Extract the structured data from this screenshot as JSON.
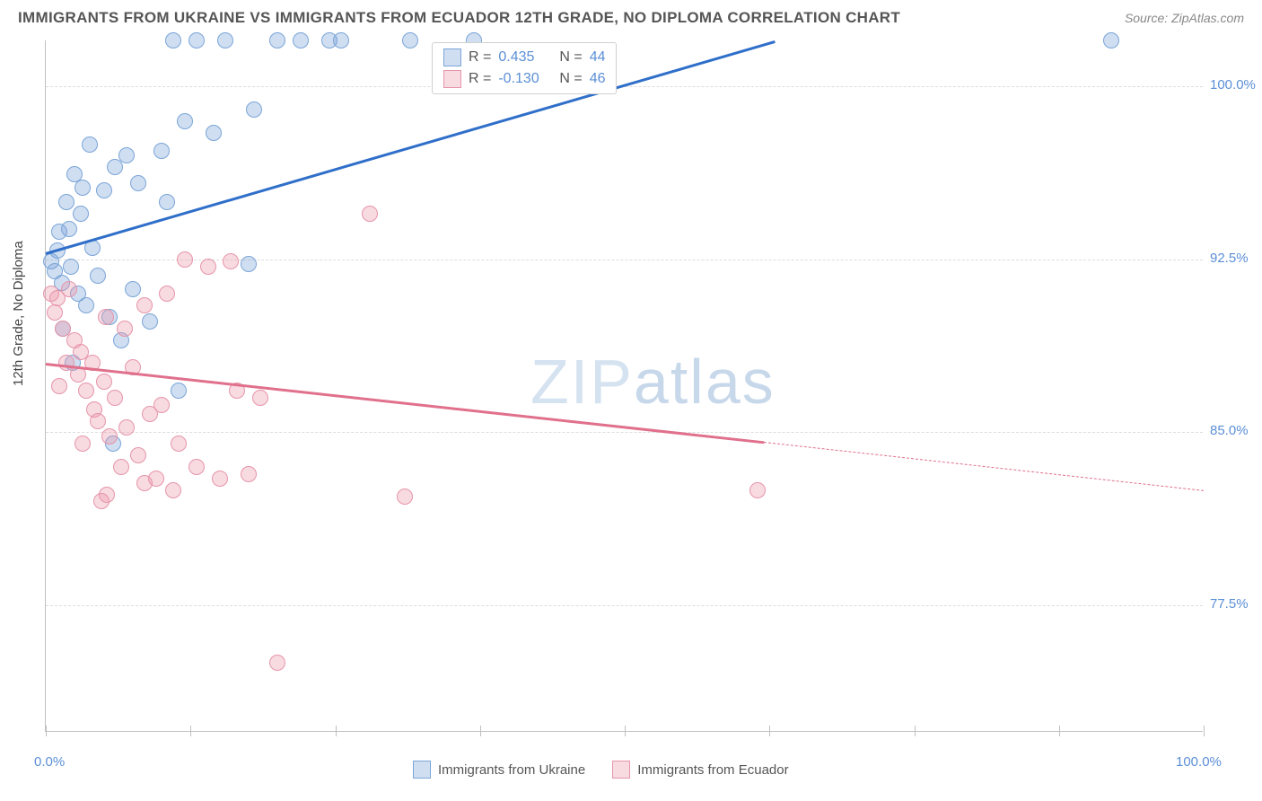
{
  "title": "IMMIGRANTS FROM UKRAINE VS IMMIGRANTS FROM ECUADOR 12TH GRADE, NO DIPLOMA CORRELATION CHART",
  "source": "Source: ZipAtlas.com",
  "ylabel": "12th Grade, No Diploma",
  "watermark": "ZIPatlas",
  "xlim": [
    0,
    100
  ],
  "ylim": [
    72,
    102
  ],
  "xtick_labels": {
    "min": "0.0%",
    "max": "100.0%"
  },
  "xtick_positions": [
    0,
    12.5,
    25,
    37.5,
    50,
    62.5,
    75,
    87.5,
    100
  ],
  "ytick_labels": [
    "77.5%",
    "85.0%",
    "92.5%",
    "100.0%"
  ],
  "ytick_values": [
    77.5,
    85.0,
    92.5,
    100.0
  ],
  "grid_color": "#dddddd",
  "background_color": "#ffffff",
  "series": [
    {
      "name": "Immigrants from Ukraine",
      "color_fill": "rgba(120,160,215,0.35)",
      "color_stroke": "#7aa5d8",
      "r_value": "0.435",
      "n_value": "44",
      "trend_color": "#2f6fc9",
      "trend_start": {
        "x": 0,
        "y": 92.8
      },
      "trend_end": {
        "x": 63,
        "y": 102.0
      },
      "marker_radius": 9,
      "points": [
        [
          0.5,
          92.4
        ],
        [
          0.8,
          92.0
        ],
        [
          1.0,
          92.9
        ],
        [
          1.2,
          93.7
        ],
        [
          1.4,
          91.5
        ],
        [
          1.8,
          95.0
        ],
        [
          2.0,
          93.8
        ],
        [
          2.2,
          92.2
        ],
        [
          2.5,
          96.2
        ],
        [
          2.8,
          91.0
        ],
        [
          3.0,
          94.5
        ],
        [
          3.2,
          95.6
        ],
        [
          3.5,
          90.5
        ],
        [
          3.8,
          97.5
        ],
        [
          4.0,
          93.0
        ],
        [
          4.5,
          91.8
        ],
        [
          5.0,
          95.5
        ],
        [
          5.5,
          90.0
        ],
        [
          6.0,
          96.5
        ],
        [
          6.5,
          89.0
        ],
        [
          1.5,
          89.5
        ],
        [
          2.3,
          88.0
        ],
        [
          7.0,
          97.0
        ],
        [
          7.5,
          91.2
        ],
        [
          8.0,
          95.8
        ],
        [
          9.0,
          89.8
        ],
        [
          10.0,
          97.2
        ],
        [
          10.5,
          95.0
        ],
        [
          11.0,
          102.0
        ],
        [
          12.0,
          98.5
        ],
        [
          13.0,
          102.0
        ],
        [
          14.5,
          98.0
        ],
        [
          15.5,
          102.0
        ],
        [
          17.5,
          92.3
        ],
        [
          18.0,
          99.0
        ],
        [
          20.0,
          102.0
        ],
        [
          22.0,
          102.0
        ],
        [
          24.5,
          102.0
        ],
        [
          25.5,
          102.0
        ],
        [
          31.5,
          102.0
        ],
        [
          37.0,
          102.0
        ],
        [
          92.0,
          102.0
        ],
        [
          5.8,
          84.5
        ],
        [
          11.5,
          86.8
        ]
      ]
    },
    {
      "name": "Immigrants from Ecuador",
      "color_fill": "rgba(235,150,170,0.35)",
      "color_stroke": "#e695aa",
      "r_value": "-0.130",
      "n_value": "46",
      "trend_color": "#e0708c",
      "trend_start": {
        "x": 0,
        "y": 88.0
      },
      "trend_end_solid": {
        "x": 62,
        "y": 84.6
      },
      "trend_end_dash": {
        "x": 100,
        "y": 82.5
      },
      "marker_radius": 9,
      "points": [
        [
          0.5,
          91.0
        ],
        [
          0.8,
          90.2
        ],
        [
          1.0,
          90.8
        ],
        [
          1.5,
          89.5
        ],
        [
          1.8,
          88.0
        ],
        [
          2.0,
          91.2
        ],
        [
          2.5,
          89.0
        ],
        [
          2.8,
          87.5
        ],
        [
          3.0,
          88.5
        ],
        [
          3.5,
          86.8
        ],
        [
          4.0,
          88.0
        ],
        [
          4.2,
          86.0
        ],
        [
          4.5,
          85.5
        ],
        [
          5.0,
          87.2
        ],
        [
          5.5,
          84.8
        ],
        [
          6.0,
          86.5
        ],
        [
          6.5,
          83.5
        ],
        [
          7.0,
          85.2
        ],
        [
          8.0,
          84.0
        ],
        [
          8.5,
          82.8
        ],
        [
          9.0,
          85.8
        ],
        [
          9.5,
          83.0
        ],
        [
          10.0,
          86.2
        ],
        [
          11.0,
          82.5
        ],
        [
          11.5,
          84.5
        ],
        [
          12.0,
          92.5
        ],
        [
          13.0,
          83.5
        ],
        [
          14.0,
          92.2
        ],
        [
          15.0,
          83.0
        ],
        [
          16.0,
          92.4
        ],
        [
          16.5,
          86.8
        ],
        [
          17.5,
          83.2
        ],
        [
          18.5,
          86.5
        ],
        [
          28.0,
          94.5
        ],
        [
          31.0,
          82.2
        ],
        [
          61.5,
          82.5
        ],
        [
          5.2,
          90.0
        ],
        [
          6.8,
          89.5
        ],
        [
          8.5,
          90.5
        ],
        [
          10.5,
          91.0
        ],
        [
          1.2,
          87.0
        ],
        [
          3.2,
          84.5
        ],
        [
          7.5,
          87.8
        ],
        [
          4.8,
          82.0
        ],
        [
          5.3,
          82.3
        ],
        [
          20.0,
          75.0
        ]
      ]
    }
  ],
  "legend": {
    "series1_label": "Immigrants from Ukraine",
    "series2_label": "Immigrants from Ecuador",
    "r_label": "R",
    "n_label": "N",
    "eq": "="
  }
}
